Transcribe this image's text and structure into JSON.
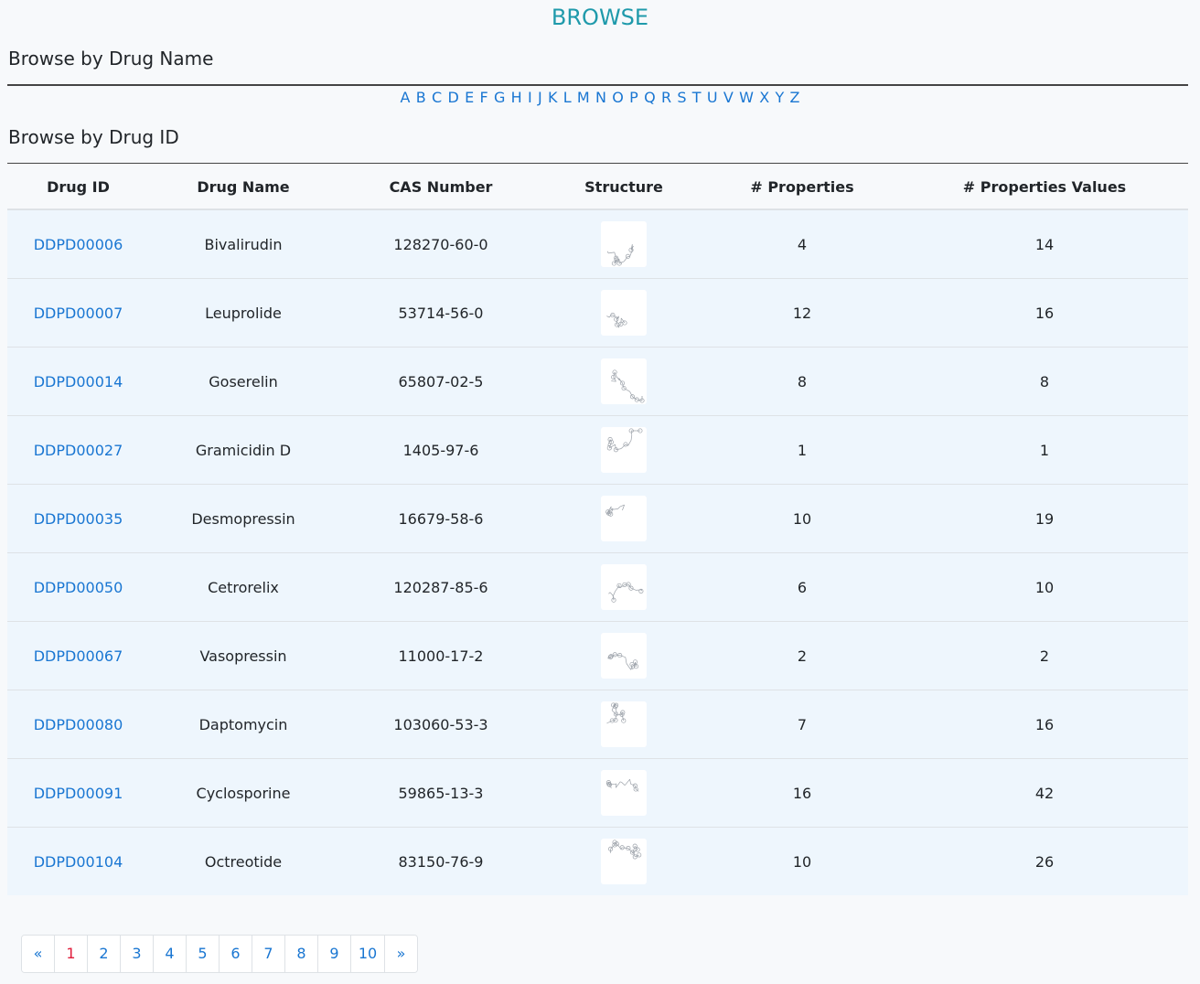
{
  "header": {
    "title": "BROWSE"
  },
  "browse_by_name": {
    "heading": "Browse by Drug Name",
    "letters": [
      "A",
      "B",
      "C",
      "D",
      "E",
      "F",
      "G",
      "H",
      "I",
      "J",
      "K",
      "L",
      "M",
      "N",
      "O",
      "P",
      "Q",
      "R",
      "S",
      "T",
      "U",
      "V",
      "W",
      "X",
      "Y",
      "Z"
    ]
  },
  "browse_by_id": {
    "heading": "Browse by Drug ID"
  },
  "table": {
    "columns": [
      "Drug ID",
      "Drug Name",
      "CAS Number",
      "Structure",
      "# Properties",
      "# Properties Values"
    ],
    "rows": [
      {
        "id": "DDPD00006",
        "name": "Bivalirudin",
        "cas": "128270-60-0",
        "properties": "4",
        "values": "14"
      },
      {
        "id": "DDPD00007",
        "name": "Leuprolide",
        "cas": "53714-56-0",
        "properties": "12",
        "values": "16"
      },
      {
        "id": "DDPD00014",
        "name": "Goserelin",
        "cas": "65807-02-5",
        "properties": "8",
        "values": "8"
      },
      {
        "id": "DDPD00027",
        "name": "Gramicidin D",
        "cas": "1405-97-6",
        "properties": "1",
        "values": "1"
      },
      {
        "id": "DDPD00035",
        "name": "Desmopressin",
        "cas": "16679-58-6",
        "properties": "10",
        "values": "19"
      },
      {
        "id": "DDPD00050",
        "name": "Cetrorelix",
        "cas": "120287-85-6",
        "properties": "6",
        "values": "10"
      },
      {
        "id": "DDPD00067",
        "name": "Vasopressin",
        "cas": "11000-17-2",
        "properties": "2",
        "values": "2"
      },
      {
        "id": "DDPD00080",
        "name": "Daptomycin",
        "cas": "103060-53-3",
        "properties": "7",
        "values": "16"
      },
      {
        "id": "DDPD00091",
        "name": "Cyclosporine",
        "cas": "59865-13-3",
        "properties": "16",
        "values": "42"
      },
      {
        "id": "DDPD00104",
        "name": "Octreotide",
        "cas": "83150-76-9",
        "properties": "10",
        "values": "26"
      }
    ]
  },
  "pagination": {
    "prev": "«",
    "next": "»",
    "pages": [
      "1",
      "2",
      "3",
      "4",
      "5",
      "6",
      "7",
      "8",
      "9",
      "10"
    ],
    "active": "1"
  },
  "colors": {
    "title": "#1f9aab",
    "link": "#1976d2",
    "active_page": "#e01e3c",
    "row_background": "#eef6fd"
  }
}
